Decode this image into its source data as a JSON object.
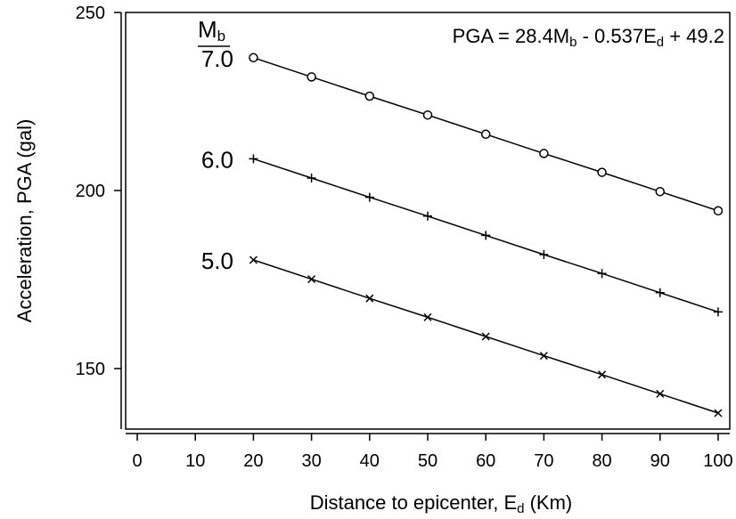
{
  "chart_data": {
    "type": "line",
    "title": "",
    "xlabel": "Distance to epicenter, E",
    "xlabel_sub": "d",
    "xlabel_unit": " (Km)",
    "ylabel": "Acceleration, PGA (gal)",
    "xlim": [
      -2,
      102
    ],
    "ylim": [
      133,
      250
    ],
    "xticks": [
      0,
      10,
      20,
      30,
      40,
      50,
      60,
      70,
      80,
      90,
      100
    ],
    "yticks": [
      150,
      200,
      250
    ],
    "grid": false,
    "legend_header": "M",
    "legend_header_sub": "b",
    "equation": {
      "lhs": "PGA = 28.4M",
      "sub1": "b",
      "mid": " - 0.537E",
      "sub2": "d",
      "rhs": " + 49.2"
    },
    "series": [
      {
        "label": "7.0",
        "marker": "circle",
        "x": [
          20,
          30,
          40,
          50,
          60,
          70,
          80,
          90,
          100
        ],
        "y": [
          237.3,
          231.9,
          226.5,
          221.2,
          215.8,
          210.4,
          205.1,
          199.7,
          194.3
        ]
      },
      {
        "label": "6.0",
        "marker": "plus",
        "x": [
          20,
          30,
          40,
          50,
          60,
          70,
          80,
          90,
          100
        ],
        "y": [
          208.9,
          203.5,
          198.1,
          192.8,
          187.4,
          182.0,
          176.7,
          171.3,
          165.9
        ]
      },
      {
        "label": "5.0",
        "marker": "cross",
        "x": [
          20,
          30,
          40,
          50,
          60,
          70,
          80,
          90,
          100
        ],
        "y": [
          180.5,
          175.1,
          169.7,
          164.4,
          159.0,
          153.6,
          148.3,
          142.9,
          137.5
        ]
      }
    ]
  }
}
